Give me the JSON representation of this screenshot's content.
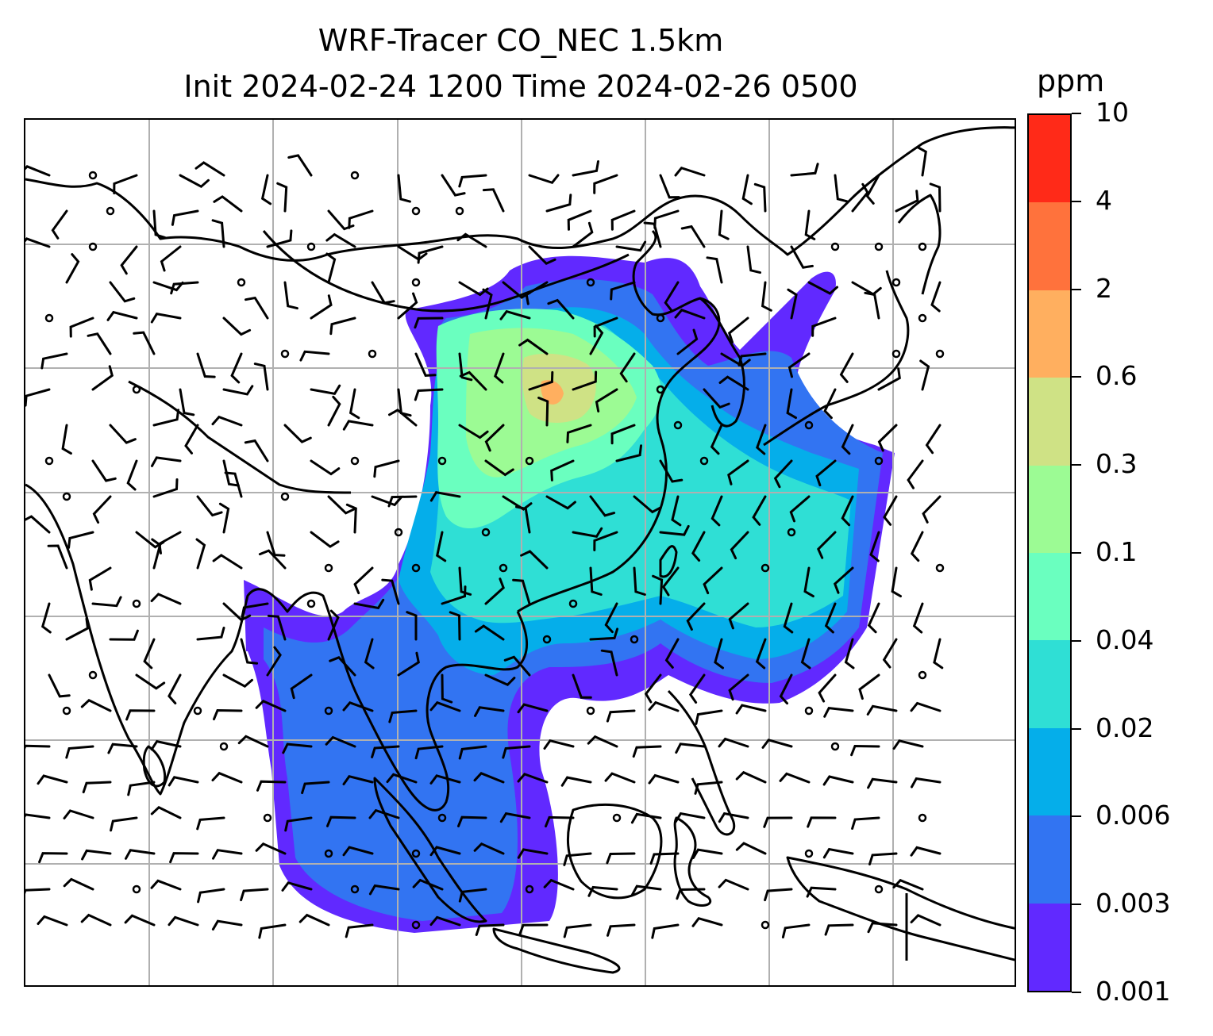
{
  "title": {
    "line1": "WRF-Tracer CO_NEC 1.5km",
    "line2": "Init 2024-02-24 1200 Time 2024-02-26 0500"
  },
  "colorbar": {
    "unit": "ppm",
    "levels": [
      "0.001",
      "0.003",
      "0.006",
      "0.02",
      "0.04",
      "0.1",
      "0.3",
      "0.6",
      "2",
      "4",
      "10"
    ],
    "colors": [
      "#6129ff",
      "#3274f2",
      "#05aeea",
      "#2fdfd5",
      "#6affbf",
      "#9cfb94",
      "#cfe285",
      "#ffaf5f",
      "#ff723c",
      "#ff2a18"
    ]
  },
  "map": {
    "gridline_color": "#b0b0b0",
    "coastline_color": "#000000",
    "wind_barbs": true,
    "gridlines": true
  }
}
